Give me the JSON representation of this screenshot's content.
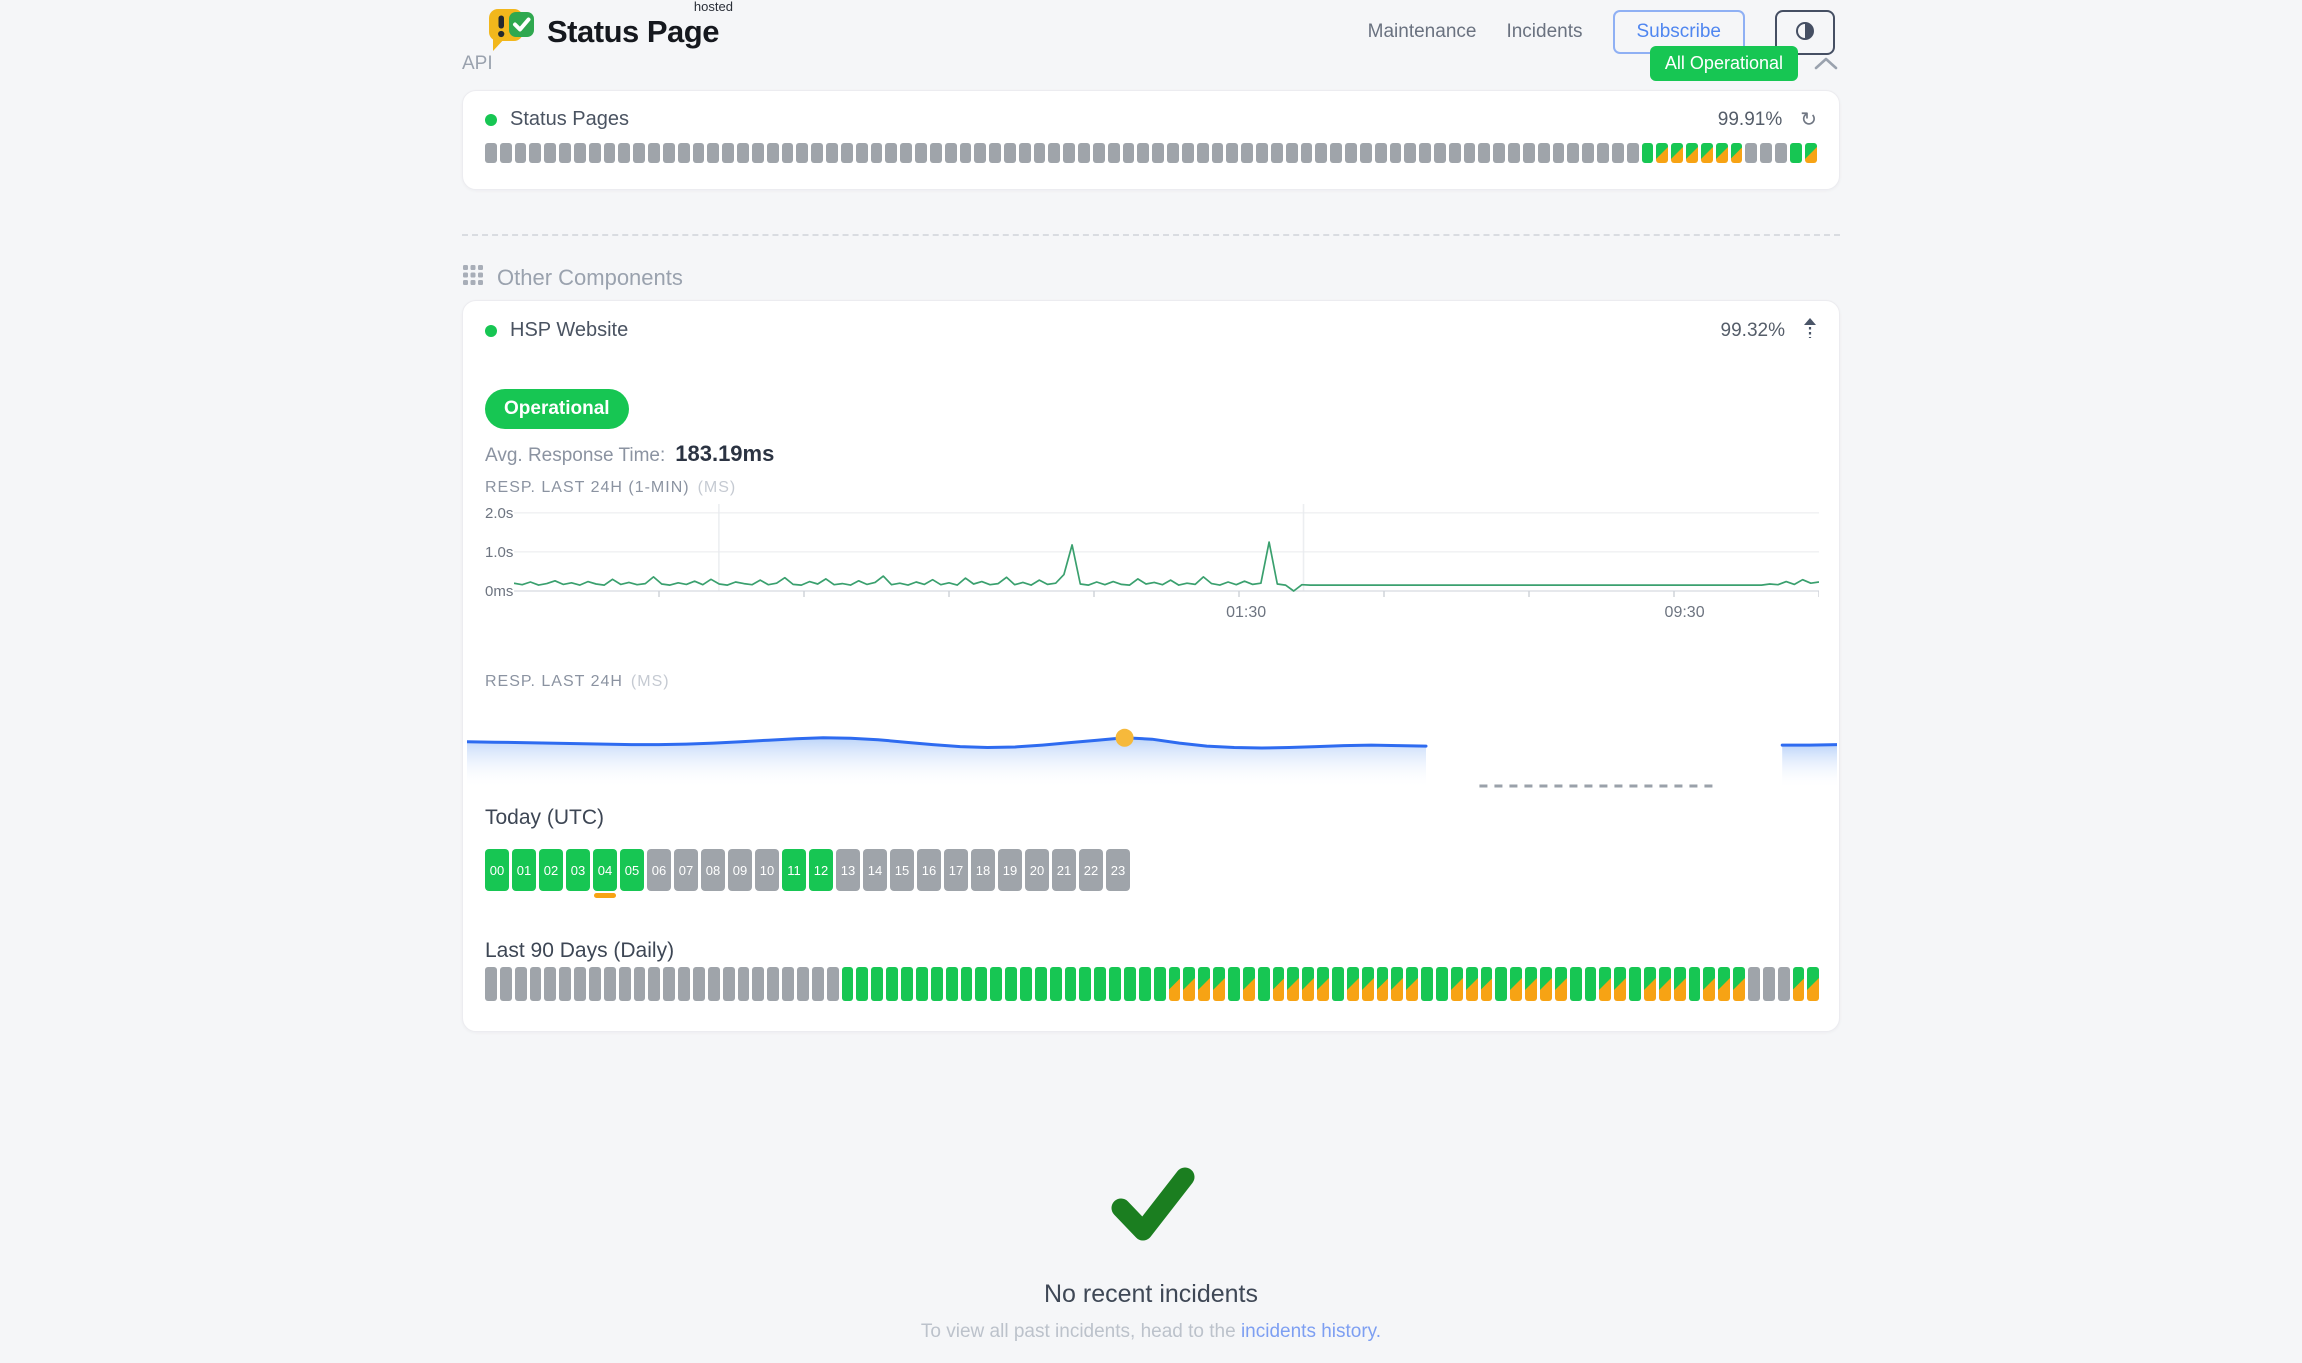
{
  "header": {
    "brand": {
      "name": "Status Page",
      "tag": "hosted"
    },
    "nav": [
      {
        "label": "Maintenance"
      },
      {
        "label": "Incidents"
      }
    ],
    "subscribe_label": "Subscribe"
  },
  "overall_status": {
    "label": "All Operational"
  },
  "api_section": {
    "title": "API",
    "component": {
      "name": "Status Pages",
      "uptime_pct": "99.91%",
      "bars": "ggggggggggggggggggggggggggggggggggggggggggggggggggggggggggggggggggggggggggggggGssssssgggGs"
    }
  },
  "other_section": {
    "title": "Other Components",
    "component": {
      "name": "HSP Website",
      "uptime_pct": "99.32%",
      "status": "Operational",
      "avg_label": "Avg. Response Time:",
      "avg_value": "183.19ms",
      "today_title": "Today (UTC)",
      "hours": [
        {
          "h": "00",
          "s": "G"
        },
        {
          "h": "01",
          "s": "G"
        },
        {
          "h": "02",
          "s": "G"
        },
        {
          "h": "03",
          "s": "G"
        },
        {
          "h": "04",
          "s": "G",
          "strip": true
        },
        {
          "h": "05",
          "s": "G"
        },
        {
          "h": "06",
          "s": "g"
        },
        {
          "h": "07",
          "s": "g"
        },
        {
          "h": "08",
          "s": "g"
        },
        {
          "h": "09",
          "s": "g"
        },
        {
          "h": "10",
          "s": "g"
        },
        {
          "h": "11",
          "s": "G"
        },
        {
          "h": "12",
          "s": "G"
        },
        {
          "h": "13",
          "s": "g"
        },
        {
          "h": "14",
          "s": "g"
        },
        {
          "h": "15",
          "s": "g"
        },
        {
          "h": "16",
          "s": "g"
        },
        {
          "h": "17",
          "s": "g"
        },
        {
          "h": "18",
          "s": "g"
        },
        {
          "h": "19",
          "s": "g"
        },
        {
          "h": "20",
          "s": "g"
        },
        {
          "h": "21",
          "s": "g"
        },
        {
          "h": "22",
          "s": "g"
        },
        {
          "h": "23",
          "s": "g"
        }
      ],
      "last90_title": "Last 90 Days (Daily)",
      "last90_bars": "ggggggggggggggggggggggggGGGGGGGGGGGGGGGGGGGGGGssssGsGssssGsssssGGsssGssssGGssGsssGsssgggss"
    }
  },
  "incidents_footer": {
    "title": "No recent incidents",
    "text_prefix": "To view all past incidents, head to the ",
    "link_label": "incidents history."
  },
  "chart_data": [
    {
      "type": "line",
      "title": "RESP. LAST 24H (1-MIN)",
      "unit": "(MS)",
      "ylabels": [
        "2.0s",
        "1.0s",
        "0ms"
      ],
      "ylim": [
        0,
        2200
      ],
      "grid_values": [
        2000,
        1000
      ],
      "vgrid_pos": [
        0.157,
        0.605
      ],
      "xticks": [
        {
          "label": "01:30",
          "pos": 0.561
        },
        {
          "label": "09:30",
          "pos": 0.897
        }
      ],
      "values": [
        200,
        160,
        230,
        150,
        190,
        260,
        170,
        210,
        150,
        240,
        180,
        150,
        300,
        170,
        220,
        160,
        190,
        360,
        180,
        150,
        210,
        170,
        250,
        160,
        300,
        180,
        150,
        230,
        190,
        160,
        280,
        160,
        200,
        340,
        170,
        150,
        240,
        180,
        310,
        160,
        190,
        150,
        260,
        170,
        220,
        380,
        160,
        200,
        150,
        230,
        170,
        290,
        160,
        210,
        150,
        330,
        180,
        240,
        160,
        190,
        350,
        160,
        220,
        150,
        280,
        170,
        200,
        420,
        1180,
        180,
        150,
        230,
        160,
        240,
        170,
        150,
        310,
        180,
        220,
        160,
        280,
        150,
        200,
        170,
        360,
        190,
        150,
        230,
        160,
        250,
        170,
        200,
        1250,
        180,
        150,
        0,
        160,
        150,
        150,
        150,
        150,
        150,
        150,
        150,
        150,
        150,
        150,
        150,
        150,
        150,
        150,
        150,
        150,
        150,
        150,
        150,
        150,
        150,
        150,
        150,
        150,
        150,
        150,
        150,
        150,
        150,
        150,
        150,
        150,
        150,
        150,
        150,
        150,
        150,
        150,
        150,
        150,
        150,
        150,
        150,
        150,
        150,
        150,
        150,
        150,
        150,
        150,
        150,
        150,
        150,
        150,
        150,
        150,
        180,
        160,
        240,
        170,
        290,
        200,
        230
      ]
    },
    {
      "type": "area",
      "title": "RESP. LAST 24H",
      "unit": "(MS)",
      "ylim": [
        120,
        215
      ],
      "values": [
        175,
        174,
        173,
        172,
        171,
        170,
        169,
        169,
        170,
        172,
        175,
        178,
        181,
        183,
        182,
        179,
        174,
        169,
        165,
        163,
        164,
        168,
        173,
        178,
        183,
        180,
        172,
        166,
        163,
        162,
        163,
        165,
        167,
        168,
        167,
        166,
        null,
        null,
        null,
        null,
        null,
        null,
        null,
        null,
        null,
        null,
        null,
        null,
        168,
        168,
        169
      ],
      "marker": {
        "index": 24,
        "color": "#f6b93b"
      },
      "gap": {
        "from": 0.739,
        "to": 0.911
      }
    }
  ],
  "colors": {
    "green": "#17c653",
    "orange": "#f7a314",
    "gray_bar": "#9fa4aa",
    "chart_line_green": "#3aa06e",
    "blue_line": "#2e6bf0",
    "marker_yellow": "#f6b93b",
    "check_green": "#1b7e20",
    "link_blue": "#7d9ff2",
    "grid_line": "#e9ebee"
  }
}
